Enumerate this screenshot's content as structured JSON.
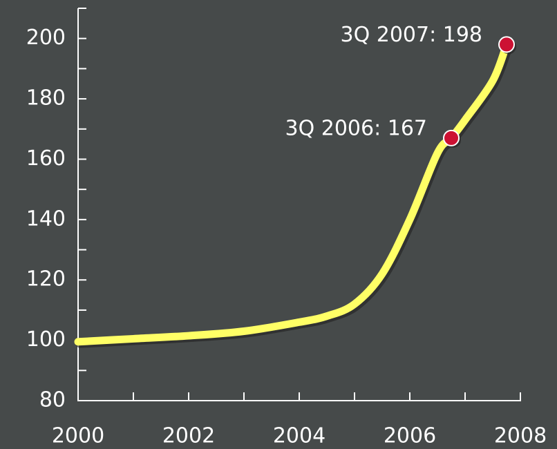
{
  "chart_data": {
    "type": "line",
    "x": [
      2000,
      2001,
      2002,
      2003,
      2004,
      2004.5,
      2005,
      2005.5,
      2006,
      2006.5,
      2006.75,
      2007,
      2007.5,
      2007.75
    ],
    "series": [
      {
        "color": "#ffff66",
        "values": [
          99.5,
          100.5,
          101.5,
          103,
          106,
          108,
          112,
          122,
          140,
          162,
          167,
          173,
          186,
          198
        ]
      }
    ],
    "xlim": [
      2000,
      2008
    ],
    "xticks": [
      2000,
      2002,
      2004,
      2006,
      2008
    ],
    "x_minor_ticks": [
      2001,
      2003,
      2005,
      2007
    ],
    "ylim": [
      80,
      210
    ],
    "yticks": [
      80,
      100,
      120,
      140,
      160,
      180,
      200
    ],
    "y_minor_ticks": [
      90,
      110,
      130,
      150,
      170,
      190,
      210
    ],
    "marker_color": "#cc1133",
    "annotations": [
      {
        "text": "3Q 2006: 167",
        "x": 2006.75,
        "y": 167
      },
      {
        "text": "3Q 2007: 198",
        "x": 2007.75,
        "y": 198
      }
    ]
  }
}
